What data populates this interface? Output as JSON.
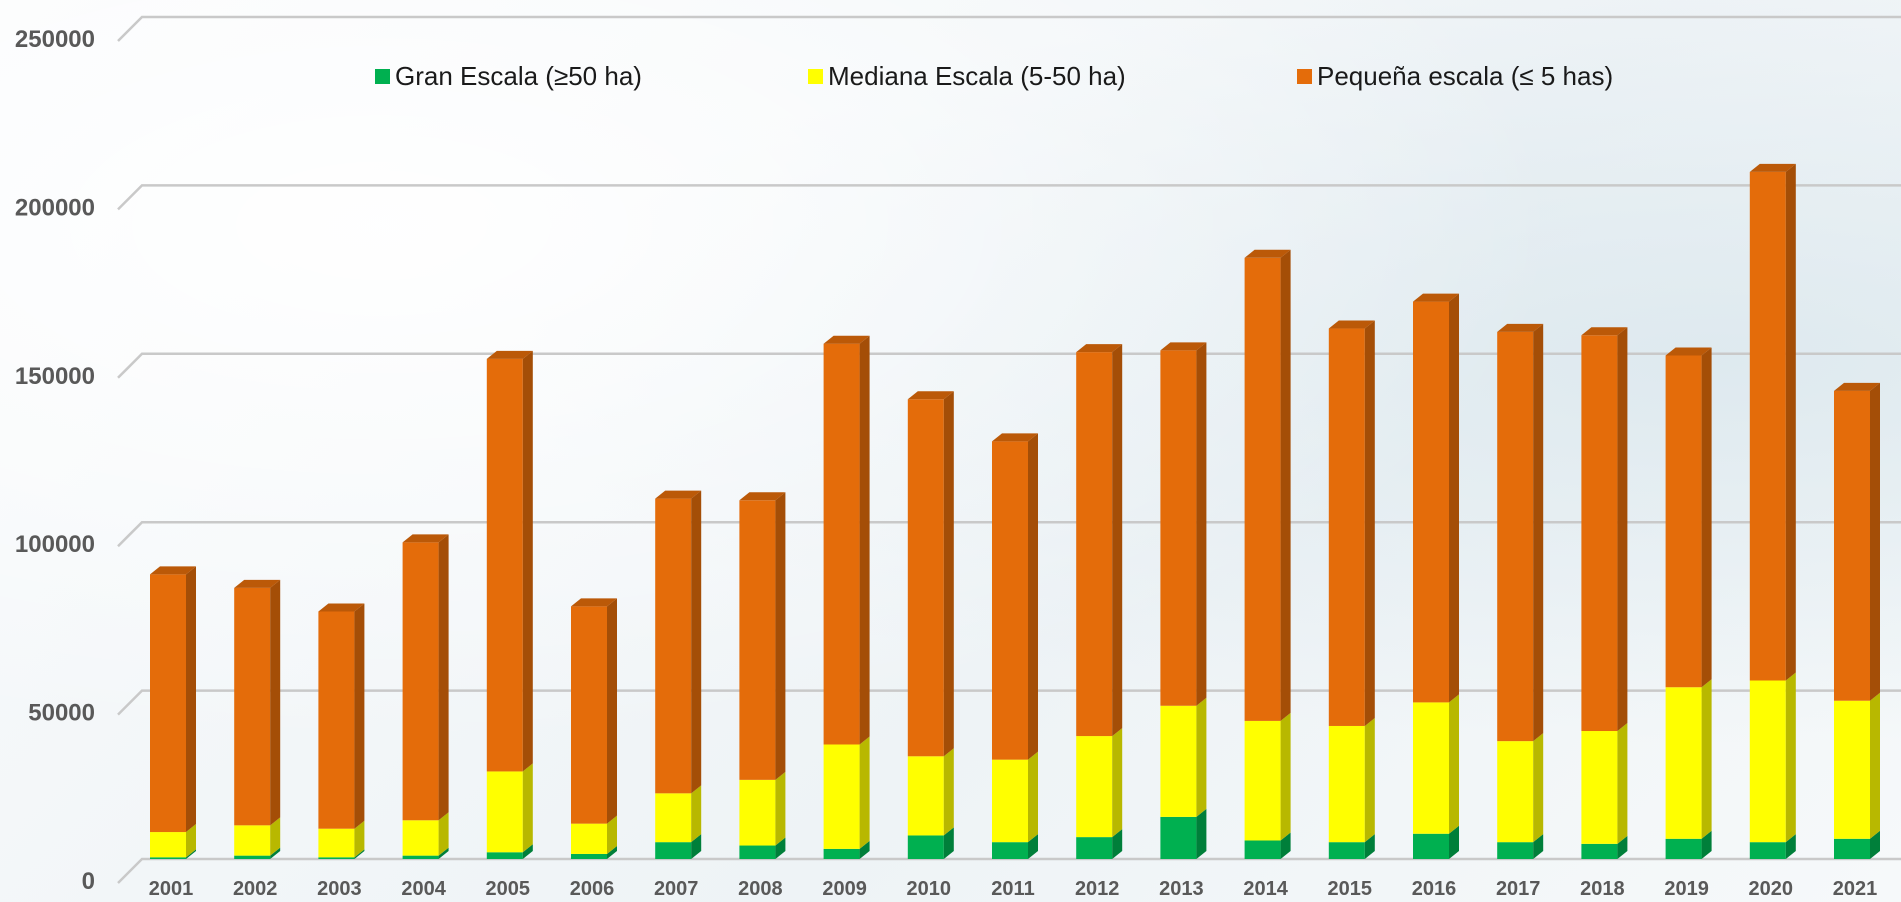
{
  "chart_data": {
    "type": "bar",
    "stacked": true,
    "title": "",
    "xlabel": "",
    "ylabel": "",
    "ylim": [
      0,
      250000
    ],
    "yticks": [
      "0",
      "50000",
      "100000",
      "150000",
      "200000",
      "250000"
    ],
    "categories": [
      "2001",
      "2002",
      "2003",
      "2004",
      "2005",
      "2006",
      "2007",
      "2008",
      "2009",
      "2010",
      "2011",
      "2012",
      "2013",
      "2014",
      "2015",
      "2016",
      "2017",
      "2018",
      "2019",
      "2020",
      "2021"
    ],
    "series": [
      {
        "name": "Gran Escala (≥50 ha)",
        "color": "#00b050",
        "values": [
          500,
          1000,
          500,
          1000,
          2000,
          1500,
          5000,
          4000,
          3000,
          7000,
          5000,
          6500,
          12500,
          5500,
          5000,
          7500,
          5000,
          4500,
          6000,
          5000,
          6000
        ]
      },
      {
        "name": "Mediana Escala (5-50 ha)",
        "color": "#ffff00",
        "values": [
          7500,
          9000,
          8500,
          10500,
          24000,
          9000,
          14500,
          19500,
          31000,
          23500,
          24500,
          30000,
          33000,
          35500,
          34500,
          39000,
          30000,
          33500,
          45000,
          48000,
          41000
        ]
      },
      {
        "name": "Pequeña escala (≤ 5 has)",
        "color": "#e46c0a",
        "values": [
          76500,
          70500,
          64500,
          82500,
          122500,
          64500,
          87500,
          83000,
          119000,
          106000,
          94500,
          114000,
          105500,
          137500,
          118000,
          119000,
          121500,
          117500,
          98500,
          151000,
          92000
        ]
      }
    ],
    "grid": true,
    "legend_position": "top",
    "style": "3d-column"
  }
}
